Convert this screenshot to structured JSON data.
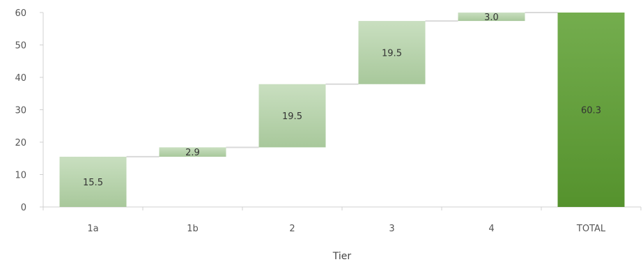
{
  "chart_data": {
    "type": "waterfall",
    "title": "",
    "xlabel": "Tier",
    "ylabel": "",
    "ylim": [
      0,
      60
    ],
    "yticks": [
      0,
      10,
      20,
      30,
      40,
      50,
      60
    ],
    "grid": false,
    "categories": [
      "1a",
      "1b",
      "2",
      "3",
      "4",
      "TOTAL"
    ],
    "values": [
      15.5,
      2.9,
      19.5,
      19.5,
      3.0,
      60.3
    ],
    "labels": [
      "15.5",
      "2.9",
      "19.5",
      "19.5",
      "3.0",
      "60.3"
    ],
    "is_total": [
      false,
      false,
      false,
      false,
      false,
      true
    ],
    "colors": {
      "increment_top": "#c9dfc0",
      "increment_bottom": "#a8c89b",
      "total_top": "#74ad4e",
      "total_bottom": "#55922d",
      "connector": "#d9d9d9",
      "axis": "#d0d0d0"
    }
  }
}
